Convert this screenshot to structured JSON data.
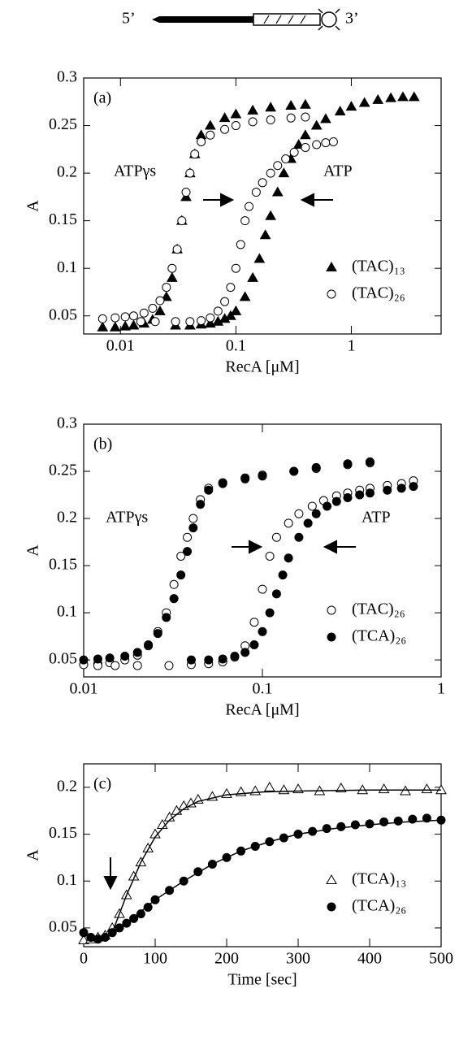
{
  "diagram": {
    "left_label": "5’",
    "right_label": "3’"
  },
  "chart_data": [
    {
      "type": "scatter",
      "panel_label": "(a)",
      "annotations": [
        "ATPγs",
        "ATP"
      ],
      "xlabel": "RecA [μM]",
      "ylabel": "A",
      "log_x": true,
      "xlim": [
        0.0048,
        6
      ],
      "xticks": [
        0.01,
        0.1,
        1
      ],
      "ylim": [
        0.031,
        0.3
      ],
      "yticks": [
        0.05,
        0.1,
        0.15,
        0.2,
        0.25,
        0.3
      ],
      "legend": "lower right",
      "series": [
        {
          "name": "(TAC)₁₃",
          "marker": "triangle",
          "color": "#000000",
          "filled": true,
          "x": [
            0.007,
            0.009,
            0.011,
            0.013,
            0.016,
            0.019,
            0.022,
            0.025,
            0.028,
            0.031,
            0.034,
            0.037,
            0.04,
            0.044,
            0.05,
            0.06,
            0.08,
            0.1,
            0.14,
            0.2,
            0.3,
            0.4,
            0.03,
            0.04,
            0.05,
            0.06,
            0.07,
            0.08,
            0.09,
            0.1,
            0.12,
            0.14,
            0.16,
            0.18,
            0.2,
            0.23,
            0.26,
            0.3,
            0.35,
            0.4,
            0.5,
            0.6,
            0.8,
            1,
            1.3,
            1.7,
            2.2,
            2.8,
            3.5
          ],
          "values": [
            0.038,
            0.038,
            0.039,
            0.04,
            0.042,
            0.046,
            0.055,
            0.07,
            0.09,
            0.12,
            0.15,
            0.175,
            0.2,
            0.22,
            0.24,
            0.25,
            0.258,
            0.262,
            0.266,
            0.269,
            0.271,
            0.272,
            0.04,
            0.04,
            0.041,
            0.042,
            0.044,
            0.047,
            0.05,
            0.055,
            0.07,
            0.09,
            0.11,
            0.135,
            0.155,
            0.18,
            0.2,
            0.215,
            0.23,
            0.24,
            0.25,
            0.257,
            0.265,
            0.27,
            0.274,
            0.277,
            0.279,
            0.28,
            0.28
          ]
        },
        {
          "name": "(TAC)₂₆",
          "marker": "circle",
          "color": "#000000",
          "filled": false,
          "x": [
            0.007,
            0.009,
            0.011,
            0.013,
            0.016,
            0.019,
            0.022,
            0.025,
            0.028,
            0.031,
            0.034,
            0.037,
            0.04,
            0.044,
            0.05,
            0.06,
            0.08,
            0.1,
            0.14,
            0.2,
            0.3,
            0.4,
            0.015,
            0.02,
            0.03,
            0.04,
            0.05,
            0.06,
            0.07,
            0.08,
            0.09,
            0.1,
            0.11,
            0.12,
            0.13,
            0.15,
            0.17,
            0.2,
            0.23,
            0.27,
            0.32,
            0.4,
            0.5,
            0.6,
            0.7
          ],
          "values": [
            0.047,
            0.048,
            0.049,
            0.05,
            0.053,
            0.058,
            0.066,
            0.08,
            0.1,
            0.12,
            0.15,
            0.18,
            0.2,
            0.22,
            0.233,
            0.24,
            0.246,
            0.25,
            0.254,
            0.256,
            0.258,
            0.259,
            0.044,
            0.044,
            0.044,
            0.044,
            0.045,
            0.048,
            0.055,
            0.065,
            0.08,
            0.1,
            0.125,
            0.15,
            0.165,
            0.18,
            0.19,
            0.2,
            0.208,
            0.215,
            0.222,
            0.227,
            0.23,
            0.232,
            0.233
          ]
        }
      ]
    },
    {
      "type": "scatter",
      "panel_label": "(b)",
      "annotations": [
        "ATPγs",
        "ATP"
      ],
      "xlabel": "RecA [μM]",
      "ylabel": "A",
      "log_x": true,
      "xlim": [
        0.01,
        1
      ],
      "xticks": [
        0.01,
        0.1,
        1
      ],
      "ylim": [
        0.032,
        0.3
      ],
      "yticks": [
        0.05,
        0.1,
        0.15,
        0.2,
        0.25,
        0.3
      ],
      "legend": "lower right",
      "series": [
        {
          "name": "(TAC)₂₆",
          "marker": "circle",
          "color": "#000000",
          "filled": false,
          "x": [
            0.01,
            0.012,
            0.014,
            0.017,
            0.02,
            0.023,
            0.026,
            0.029,
            0.032,
            0.035,
            0.038,
            0.041,
            0.045,
            0.05,
            0.06,
            0.08,
            0.1,
            0.15,
            0.2,
            0.3,
            0.4,
            0.012,
            0.015,
            0.02,
            0.03,
            0.04,
            0.05,
            0.06,
            0.07,
            0.08,
            0.09,
            0.1,
            0.11,
            0.12,
            0.14,
            0.16,
            0.19,
            0.22,
            0.26,
            0.3,
            0.35,
            0.4,
            0.5,
            0.6,
            0.7
          ],
          "values": [
            0.045,
            0.046,
            0.047,
            0.05,
            0.055,
            0.065,
            0.08,
            0.1,
            0.13,
            0.16,
            0.18,
            0.2,
            0.22,
            0.232,
            0.238,
            0.243,
            0.246,
            0.25,
            0.253,
            0.257,
            0.259,
            0.044,
            0.044,
            0.044,
            0.044,
            0.045,
            0.046,
            0.048,
            0.053,
            0.065,
            0.09,
            0.125,
            0.16,
            0.18,
            0.195,
            0.205,
            0.213,
            0.219,
            0.224,
            0.227,
            0.23,
            0.232,
            0.235,
            0.237,
            0.24
          ]
        },
        {
          "name": "(TCA)₂₆",
          "marker": "circle",
          "color": "#000000",
          "filled": true,
          "x": [
            0.01,
            0.012,
            0.014,
            0.017,
            0.02,
            0.023,
            0.026,
            0.029,
            0.032,
            0.035,
            0.038,
            0.041,
            0.045,
            0.05,
            0.06,
            0.08,
            0.1,
            0.15,
            0.2,
            0.3,
            0.4,
            0.04,
            0.05,
            0.06,
            0.07,
            0.08,
            0.09,
            0.1,
            0.11,
            0.12,
            0.13,
            0.14,
            0.16,
            0.18,
            0.2,
            0.23,
            0.26,
            0.3,
            0.35,
            0.4,
            0.5,
            0.6,
            0.7
          ],
          "values": [
            0.05,
            0.051,
            0.052,
            0.054,
            0.058,
            0.066,
            0.078,
            0.095,
            0.115,
            0.14,
            0.165,
            0.19,
            0.215,
            0.23,
            0.237,
            0.242,
            0.245,
            0.25,
            0.254,
            0.258,
            0.26,
            0.05,
            0.05,
            0.051,
            0.054,
            0.058,
            0.066,
            0.08,
            0.1,
            0.12,
            0.14,
            0.158,
            0.18,
            0.195,
            0.205,
            0.213,
            0.218,
            0.222,
            0.225,
            0.227,
            0.23,
            0.232,
            0.234
          ]
        }
      ]
    },
    {
      "type": "scatter",
      "panel_label": "(c)",
      "annotations": [],
      "xlabel": "Time [sec]",
      "ylabel": "A",
      "log_x": false,
      "xlim": [
        0,
        500
      ],
      "xticks": [
        0,
        100,
        200,
        300,
        400,
        500
      ],
      "ylim": [
        0.03,
        0.225
      ],
      "yticks": [
        0.05,
        0.1,
        0.15,
        0.2
      ],
      "legend": "lower right",
      "series": [
        {
          "name": "(TCA)₁₃",
          "marker": "triangle",
          "color": "#000000",
          "filled": false,
          "x": [
            0,
            10,
            20,
            30,
            40,
            50,
            60,
            70,
            80,
            90,
            100,
            110,
            120,
            130,
            140,
            150,
            160,
            180,
            200,
            220,
            240,
            260,
            280,
            300,
            330,
            360,
            390,
            420,
            450,
            480,
            500
          ],
          "values": [
            0.037,
            0.038,
            0.04,
            0.042,
            0.05,
            0.065,
            0.085,
            0.105,
            0.12,
            0.135,
            0.15,
            0.16,
            0.168,
            0.175,
            0.18,
            0.183,
            0.187,
            0.19,
            0.193,
            0.195,
            0.196,
            0.2,
            0.197,
            0.198,
            0.196,
            0.199,
            0.197,
            0.198,
            0.196,
            0.198,
            0.197
          ]
        },
        {
          "name": "(TCA)₂₆",
          "marker": "circle",
          "color": "#000000",
          "filled": true,
          "x": [
            0,
            10,
            20,
            30,
            40,
            50,
            60,
            70,
            80,
            90,
            100,
            120,
            140,
            160,
            180,
            200,
            220,
            240,
            260,
            280,
            300,
            320,
            340,
            360,
            380,
            400,
            420,
            440,
            460,
            480,
            500
          ],
          "values": [
            0.045,
            0.04,
            0.038,
            0.04,
            0.045,
            0.05,
            0.055,
            0.06,
            0.065,
            0.072,
            0.08,
            0.09,
            0.1,
            0.11,
            0.118,
            0.125,
            0.132,
            0.137,
            0.142,
            0.146,
            0.15,
            0.153,
            0.156,
            0.158,
            0.16,
            0.161,
            0.163,
            0.164,
            0.166,
            0.167,
            0.165
          ]
        },
        {
          "marker": "line",
          "color": "#000000",
          "x": [
            40,
            60,
            80,
            100,
            120,
            140,
            160,
            200,
            250,
            300,
            400,
            500
          ],
          "values": [
            0.045,
            0.085,
            0.12,
            0.147,
            0.165,
            0.177,
            0.185,
            0.192,
            0.195,
            0.196,
            0.197,
            0.197
          ]
        },
        {
          "marker": "line",
          "color": "#000000",
          "x": [
            30,
            60,
            100,
            140,
            180,
            220,
            260,
            300,
            350,
            400,
            450,
            500
          ],
          "values": [
            0.04,
            0.055,
            0.08,
            0.1,
            0.118,
            0.132,
            0.142,
            0.15,
            0.156,
            0.16,
            0.163,
            0.165
          ]
        }
      ]
    }
  ]
}
